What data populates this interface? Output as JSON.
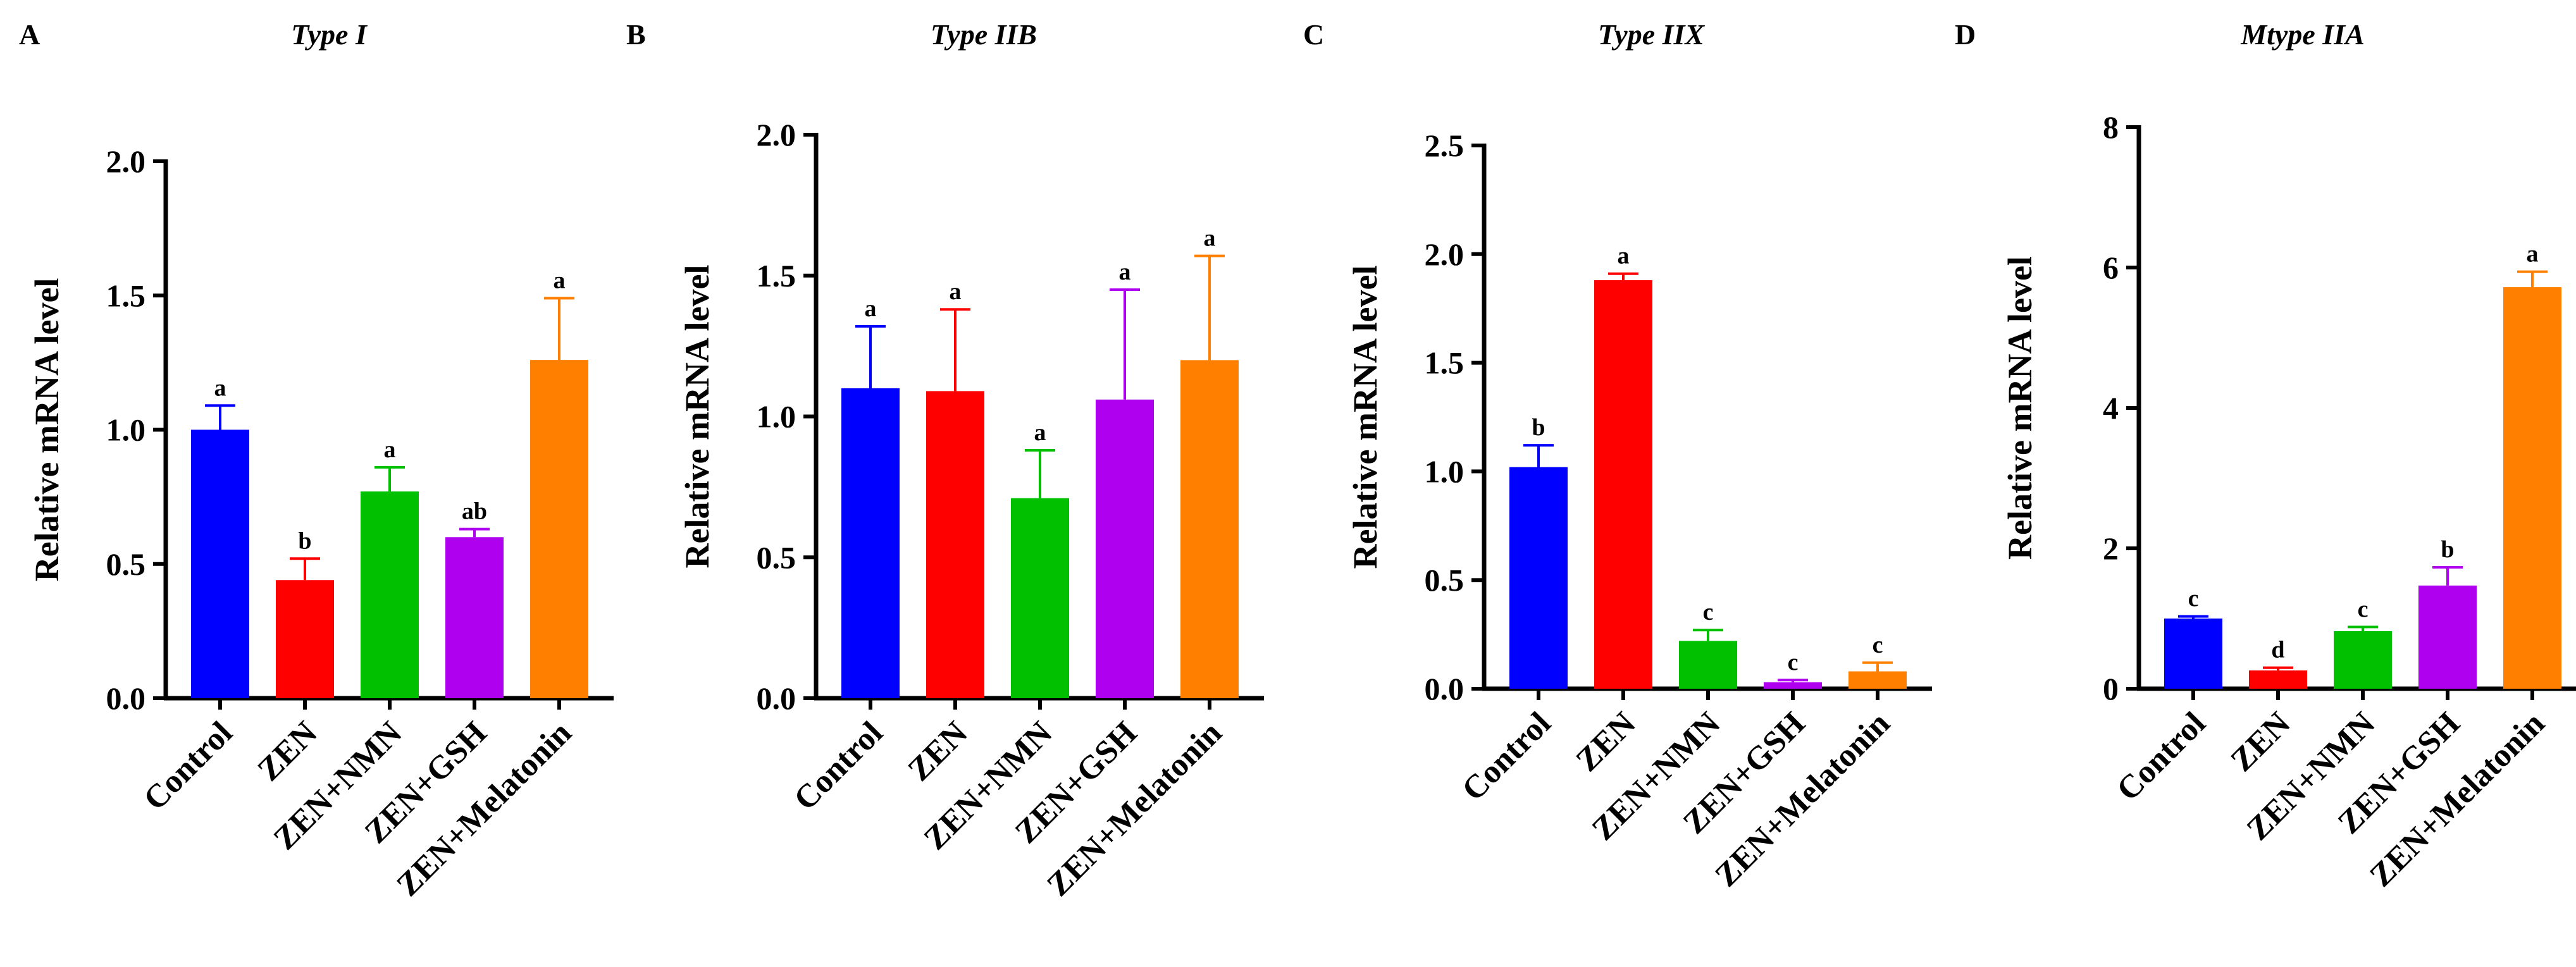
{
  "chart_data": [
    {
      "panel": "A",
      "type": "bar",
      "title": "Type I",
      "ylabel": "Relative mRNA level",
      "xlabel": "",
      "categories": [
        "Control",
        "ZEN",
        "ZEN+NMN",
        "ZEN+GSH",
        "ZEN+Melatonin"
      ],
      "values": [
        1.0,
        0.44,
        0.77,
        0.6,
        1.26
      ],
      "errors": [
        0.09,
        0.08,
        0.09,
        0.03,
        0.23
      ],
      "significance": [
        "a",
        "b",
        "a",
        "ab",
        "a"
      ],
      "ylim": [
        0,
        2.0
      ],
      "yticks": [
        0,
        0.5,
        1.0,
        1.5,
        2.0
      ],
      "ytick_labels": [
        "0.0",
        "0.5",
        "1.0",
        "1.5",
        "2.0"
      ],
      "colors": [
        "#0000ff",
        "#ff0000",
        "#00c000",
        "#b000f0",
        "#ff8000"
      ]
    },
    {
      "panel": "B",
      "type": "bar",
      "title": "Type IIB",
      "ylabel": "Relative mRNA level",
      "xlabel": "",
      "categories": [
        "Control",
        "ZEN",
        "ZEN+NMN",
        "ZEN+GSH",
        "ZEN+Melatonin"
      ],
      "values": [
        1.1,
        1.09,
        0.71,
        1.06,
        1.2
      ],
      "errors": [
        0.22,
        0.29,
        0.17,
        0.39,
        0.37
      ],
      "significance": [
        "a",
        "a",
        "a",
        "a",
        "a"
      ],
      "ylim": [
        0,
        2.0
      ],
      "yticks": [
        0,
        0.5,
        1.0,
        1.5,
        2.0
      ],
      "ytick_labels": [
        "0.0",
        "0.5",
        "1.0",
        "1.5",
        "2.0"
      ],
      "colors": [
        "#0000ff",
        "#ff0000",
        "#00c000",
        "#b000f0",
        "#ff8000"
      ]
    },
    {
      "panel": "C",
      "type": "bar",
      "title": "Type IIX",
      "ylabel": "Relative mRNA level",
      "xlabel": "",
      "categories": [
        "Control",
        "ZEN",
        "ZEN+NMN",
        "ZEN+GSH",
        "ZEN+Melatonin"
      ],
      "values": [
        1.02,
        1.88,
        0.22,
        0.03,
        0.08
      ],
      "errors": [
        0.1,
        0.03,
        0.05,
        0.01,
        0.04
      ],
      "significance": [
        "b",
        "a",
        "c",
        "c",
        "c"
      ],
      "ylim": [
        0,
        2.5
      ],
      "yticks": [
        0,
        0.5,
        1.0,
        1.5,
        2.0,
        2.5
      ],
      "ytick_labels": [
        "0.0",
        "0.5",
        "1.0",
        "1.5",
        "2.0",
        "2.5"
      ],
      "colors": [
        "#0000ff",
        "#ff0000",
        "#00c000",
        "#b000f0",
        "#ff8000"
      ]
    },
    {
      "panel": "D",
      "type": "bar",
      "title": "Mtype IIA",
      "ylabel": "Relative mRNA level",
      "xlabel": "",
      "categories": [
        "Control",
        "ZEN",
        "ZEN+NMN",
        "ZEN+GSH",
        "ZEN+Melatonin"
      ],
      "values": [
        1.0,
        0.26,
        0.82,
        1.47,
        5.72
      ],
      "errors": [
        0.03,
        0.04,
        0.06,
        0.26,
        0.22
      ],
      "significance": [
        "c",
        "d",
        "c",
        "b",
        "a"
      ],
      "ylim": [
        0,
        8
      ],
      "yticks": [
        0,
        2,
        4,
        6,
        8
      ],
      "ytick_labels": [
        "0",
        "2",
        "4",
        "6",
        "8"
      ],
      "colors": [
        "#0000ff",
        "#ff0000",
        "#00c000",
        "#b000f0",
        "#ff8000"
      ]
    }
  ]
}
